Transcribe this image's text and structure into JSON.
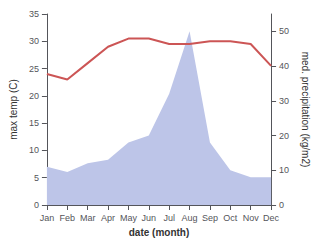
{
  "chart_data": {
    "type": "line",
    "xlabel": "date (month)",
    "ylabel": "max temp (C)",
    "y2label": "med. precipitation (kg/m2)",
    "categories": [
      "Jan",
      "Feb",
      "Mar",
      "Apr",
      "May",
      "Jun",
      "Jul",
      "Aug",
      "Sep",
      "Oct",
      "Nov",
      "Dec"
    ],
    "series": [
      {
        "type": "area",
        "axis": "y2",
        "color": "#bdc5e8",
        "values": [
          11,
          9.5,
          12,
          13,
          18,
          20,
          32,
          50,
          18,
          10,
          8,
          8
        ]
      },
      {
        "type": "line",
        "color": "#cc5555",
        "values": [
          24.0,
          23.0,
          26.0,
          29.0,
          30.5,
          30.5,
          29.5,
          29.5,
          30.0,
          30.0,
          29.5,
          25.5
        ]
      }
    ],
    "ylim": [
      0,
      35
    ],
    "yticks": [
      0,
      5,
      10,
      15,
      20,
      25,
      30,
      35
    ],
    "y2lim": [
      0,
      55
    ],
    "y2ticks": [
      0,
      10,
      20,
      30,
      40,
      50
    ],
    "grid": false
  }
}
